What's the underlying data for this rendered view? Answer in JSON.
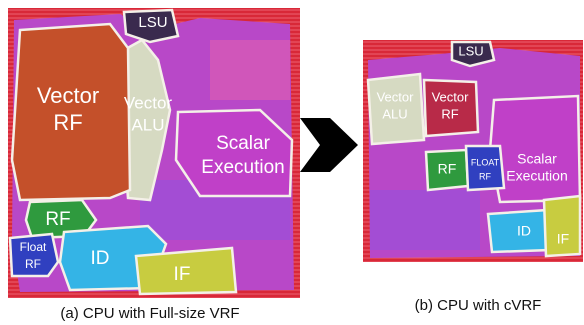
{
  "panels": [
    {
      "caption": "(a) CPU with Full-size VRF",
      "regions": [
        {
          "lines": [
            "LSU"
          ]
        },
        {
          "lines": [
            "Vector",
            "RF"
          ]
        },
        {
          "lines": [
            "Vector",
            "ALU"
          ]
        },
        {
          "lines": [
            "Scalar",
            "Execution"
          ]
        },
        {
          "lines": [
            "RF"
          ]
        },
        {
          "lines": [
            "Float",
            "RF"
          ]
        },
        {
          "lines": [
            "ID"
          ]
        },
        {
          "lines": [
            "IF"
          ]
        }
      ]
    },
    {
      "caption": "(b) CPU with cVRF",
      "regions": [
        {
          "lines": [
            "LSU"
          ]
        },
        {
          "lines": [
            "Vector",
            "ALU"
          ]
        },
        {
          "lines": [
            "Vector",
            "RF"
          ]
        },
        {
          "lines": [
            "Scalar",
            "Execution"
          ]
        },
        {
          "lines": [
            "RF"
          ]
        },
        {
          "lines": [
            "FLOAT",
            "RF"
          ]
        },
        {
          "lines": [
            "ID"
          ]
        },
        {
          "lines": [
            "IF"
          ]
        }
      ]
    }
  ]
}
